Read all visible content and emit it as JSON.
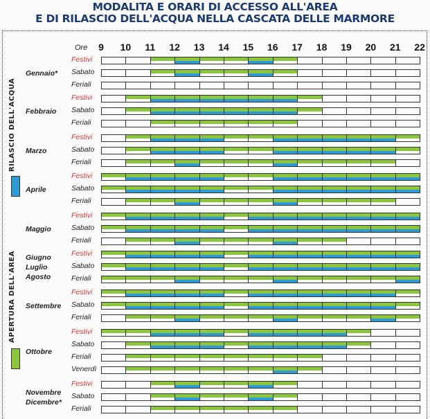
{
  "title_line1": "MODALITA E ORARI DI ACCESSO ALL'AREA",
  "title_line2": "E DI RILASCIO DELL'ACQUA NELLA CASCATA DELLE MARMORE",
  "legend": {
    "water_label": "RILASCIO DELL'ACQUA",
    "water_color": "#2f9ad4",
    "area_label": "APERTURA DELL'AREA",
    "area_color": "#8cc63f"
  },
  "ore_label": "Ore",
  "hours": [
    "9",
    "10",
    "11",
    "12",
    "13",
    "14",
    "15",
    "16",
    "17",
    "18",
    "19",
    "20",
    "21",
    "22"
  ],
  "months": [
    {
      "label": "Gennaio*",
      "rows": [
        {
          "label": "Festivi",
          "type": "festivi",
          "green": [
            [
              11,
              17
            ]
          ],
          "blue": [
            [
              12,
              13
            ],
            [
              15,
              16
            ]
          ]
        },
        {
          "label": "Sabato",
          "type": "normal",
          "green": [
            [
              11,
              17
            ]
          ],
          "blue": [
            [
              12,
              13
            ],
            [
              15,
              16
            ]
          ]
        },
        {
          "label": "Feriali",
          "type": "normal",
          "green": [],
          "blue": []
        }
      ]
    },
    {
      "label": "Febbraio",
      "rows": [
        {
          "label": "Festivi",
          "type": "festivi",
          "green": [
            [
              10,
              18
            ]
          ],
          "blue": [
            [
              11,
              17
            ]
          ]
        },
        {
          "label": "Sabato",
          "type": "normal",
          "green": [
            [
              10,
              18
            ]
          ],
          "blue": [
            [
              11,
              17
            ]
          ]
        },
        {
          "label": "Feriali",
          "type": "normal",
          "green": [
            [
              11,
              17
            ]
          ],
          "blue": []
        }
      ]
    },
    {
      "label": "Marzo",
      "rows": [
        {
          "label": "Festivi",
          "type": "festivi",
          "green": [
            [
              10,
              22
            ]
          ],
          "blue": [
            [
              11,
              14
            ],
            [
              16,
              21
            ]
          ]
        },
        {
          "label": "Sabato",
          "type": "normal",
          "green": [
            [
              10,
              22
            ]
          ],
          "blue": [
            [
              11,
              14
            ],
            [
              16,
              21
            ]
          ]
        },
        {
          "label": "Feriali",
          "type": "normal",
          "green": [
            [
              10,
              21
            ]
          ],
          "blue": [
            [
              12,
              13
            ],
            [
              16,
              17
            ]
          ]
        }
      ]
    },
    {
      "label": "Aprile",
      "rows": [
        {
          "label": "Festivi",
          "type": "festivi",
          "green": [
            [
              9,
              22
            ]
          ],
          "blue": [
            [
              10,
              14
            ],
            [
              16,
              22
            ]
          ]
        },
        {
          "label": "Sabato",
          "type": "normal",
          "green": [
            [
              9,
              22
            ]
          ],
          "blue": [
            [
              10,
              14
            ],
            [
              16,
              22
            ]
          ]
        },
        {
          "label": "Feriali",
          "type": "normal",
          "green": [
            [
              10,
              21
            ]
          ],
          "blue": [
            [
              12,
              13
            ],
            [
              16,
              17
            ]
          ]
        }
      ]
    },
    {
      "label": "Maggio",
      "rows": [
        {
          "label": "Festivi",
          "type": "festivi",
          "green": [
            [
              9,
              22
            ]
          ],
          "blue": [
            [
              10,
              14
            ],
            [
              15,
              22
            ]
          ]
        },
        {
          "label": "Sabato",
          "type": "normal",
          "green": [
            [
              9,
              22
            ]
          ],
          "blue": [
            [
              10,
              14
            ],
            [
              15,
              22
            ]
          ]
        },
        {
          "label": "Feriali",
          "type": "normal",
          "green": [
            [
              10,
              19
            ]
          ],
          "blue": [
            [
              12,
              13
            ],
            [
              16,
              17
            ]
          ]
        }
      ]
    },
    {
      "label": "Giugno\nLuglio\nAgosto",
      "rows": [
        {
          "label": "Festivi",
          "type": "festivi",
          "green": [
            [
              9,
              22
            ]
          ],
          "blue": [
            [
              10,
              14
            ],
            [
              15,
              22
            ]
          ]
        },
        {
          "label": "Sabato",
          "type": "normal",
          "green": [
            [
              9,
              22
            ]
          ],
          "blue": [
            [
              10,
              14
            ],
            [
              15,
              22
            ]
          ]
        },
        {
          "label": "Feriali",
          "type": "normal",
          "green": [
            [
              9,
              22
            ]
          ],
          "blue": [
            [
              12,
              13
            ],
            [
              16,
              17
            ],
            [
              21,
              22
            ]
          ]
        }
      ]
    },
    {
      "label": "Settembre",
      "rows": [
        {
          "label": "Festivi",
          "type": "festivi",
          "green": [
            [
              9,
              22
            ]
          ],
          "blue": [
            [
              10,
              14
            ],
            [
              15,
              21
            ]
          ]
        },
        {
          "label": "Sabato",
          "type": "normal",
          "green": [
            [
              9,
              22
            ]
          ],
          "blue": [
            [
              10,
              14
            ],
            [
              15,
              21
            ]
          ]
        },
        {
          "label": "Feriali",
          "type": "normal",
          "green": [
            [
              10,
              22
            ]
          ],
          "blue": [
            [
              12,
              13
            ],
            [
              16,
              17
            ],
            [
              20,
              21
            ]
          ]
        }
      ]
    },
    {
      "label": "Ottobre",
      "rows": [
        {
          "label": "Festivi",
          "type": "festivi",
          "green": [
            [
              9,
              20
            ]
          ],
          "blue": [
            [
              11,
              14
            ],
            [
              15,
              19
            ]
          ]
        },
        {
          "label": "Sabato",
          "type": "normal",
          "green": [
            [
              10,
              20
            ]
          ],
          "blue": [
            [
              11,
              14
            ],
            [
              15,
              19
            ]
          ]
        },
        {
          "label": "Feriali",
          "type": "normal",
          "green": [
            [
              10,
              18
            ]
          ],
          "blue": []
        },
        {
          "label": "Venerdì",
          "type": "normal",
          "green": [
            [
              10,
              18
            ]
          ],
          "blue": [
            [
              16,
              17
            ]
          ]
        }
      ]
    },
    {
      "label": "Novembre\nDicembre*",
      "rows": [
        {
          "label": "Festivi",
          "type": "festivi",
          "green": [
            [
              11,
              17
            ]
          ],
          "blue": [
            [
              12,
              13
            ],
            [
              15,
              16
            ]
          ]
        },
        {
          "label": "Sabato",
          "type": "normal",
          "green": [
            [
              11,
              17
            ]
          ],
          "blue": [
            [
              12,
              13
            ],
            [
              15,
              16
            ]
          ]
        },
        {
          "label": "Feriali",
          "type": "normal",
          "green": [
            [
              11,
              17
            ]
          ],
          "blue": []
        }
      ]
    }
  ]
}
